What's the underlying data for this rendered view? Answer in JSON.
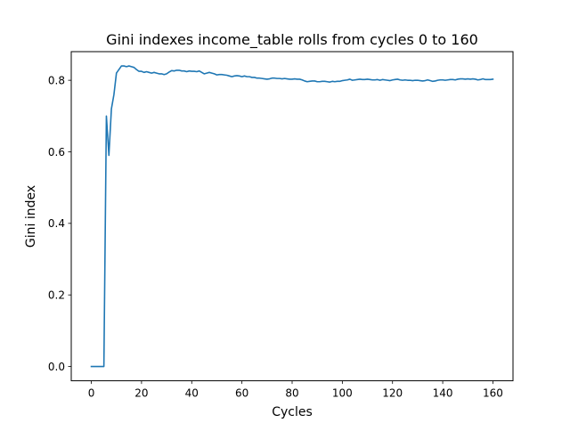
{
  "chart_data": {
    "type": "line",
    "title": "Gini indexes income_table rolls from cycles 0 to 160",
    "xlabel": "Cycles",
    "ylabel": "Gini index",
    "xlim": [
      -8,
      168
    ],
    "ylim": [
      -0.04,
      0.88
    ],
    "xticks": [
      0,
      20,
      40,
      60,
      80,
      100,
      120,
      140,
      160
    ],
    "xtick_labels": [
      "0",
      "20",
      "40",
      "60",
      "80",
      "100",
      "120",
      "140",
      "160"
    ],
    "yticks": [
      0.0,
      0.2,
      0.4,
      0.6,
      0.8
    ],
    "ytick_labels": [
      "0.0",
      "0.2",
      "0.4",
      "0.6",
      "0.8"
    ],
    "grid": false,
    "legend": null,
    "series": [
      {
        "color": "#1f77b4",
        "x": [
          0,
          1,
          2,
          3,
          4,
          5,
          6,
          7,
          8,
          9,
          10,
          11,
          12,
          13,
          14,
          15,
          16,
          17,
          18,
          19,
          20,
          21,
          22,
          23,
          24,
          25,
          26,
          27,
          28,
          29,
          30,
          31,
          32,
          33,
          34,
          35,
          36,
          37,
          38,
          39,
          40,
          41,
          42,
          43,
          44,
          45,
          46,
          47,
          48,
          49,
          50,
          51,
          52,
          53,
          54,
          55,
          56,
          57,
          58,
          59,
          60,
          61,
          62,
          63,
          64,
          65,
          66,
          67,
          68,
          69,
          70,
          71,
          72,
          73,
          74,
          75,
          76,
          77,
          78,
          79,
          80,
          81,
          82,
          83,
          84,
          85,
          86,
          87,
          88,
          89,
          90,
          91,
          92,
          93,
          94,
          95,
          96,
          97,
          98,
          99,
          100,
          101,
          102,
          103,
          104,
          105,
          106,
          107,
          108,
          109,
          110,
          111,
          112,
          113,
          114,
          115,
          116,
          117,
          118,
          119,
          120,
          121,
          122,
          123,
          124,
          125,
          126,
          127,
          128,
          129,
          130,
          131,
          132,
          133,
          134,
          135,
          136,
          137,
          138,
          139,
          140,
          141,
          142,
          143,
          144,
          145,
          146,
          147,
          148,
          149,
          150,
          151,
          152,
          153,
          154,
          155,
          156,
          157,
          158,
          159,
          160
        ],
        "y": [
          0.0,
          0.0,
          0.0,
          0.0,
          0.0,
          0.0,
          0.7,
          0.59,
          0.72,
          0.76,
          0.82,
          0.83,
          0.84,
          0.84,
          0.838,
          0.84,
          0.838,
          0.836,
          0.83,
          0.825,
          0.825,
          0.822,
          0.824,
          0.822,
          0.82,
          0.822,
          0.82,
          0.818,
          0.818,
          0.816,
          0.818,
          0.823,
          0.827,
          0.826,
          0.828,
          0.828,
          0.826,
          0.826,
          0.824,
          0.826,
          0.825,
          0.825,
          0.824,
          0.826,
          0.822,
          0.818,
          0.82,
          0.822,
          0.82,
          0.818,
          0.815,
          0.816,
          0.816,
          0.815,
          0.814,
          0.812,
          0.81,
          0.812,
          0.813,
          0.812,
          0.81,
          0.812,
          0.81,
          0.81,
          0.808,
          0.808,
          0.806,
          0.806,
          0.805,
          0.804,
          0.803,
          0.804,
          0.806,
          0.806,
          0.805,
          0.805,
          0.804,
          0.805,
          0.804,
          0.803,
          0.803,
          0.804,
          0.803,
          0.803,
          0.801,
          0.798,
          0.796,
          0.797,
          0.798,
          0.798,
          0.796,
          0.796,
          0.797,
          0.797,
          0.796,
          0.795,
          0.797,
          0.796,
          0.797,
          0.797,
          0.799,
          0.8,
          0.801,
          0.803,
          0.8,
          0.801,
          0.802,
          0.803,
          0.802,
          0.802,
          0.803,
          0.802,
          0.801,
          0.801,
          0.802,
          0.8,
          0.802,
          0.801,
          0.8,
          0.799,
          0.801,
          0.802,
          0.803,
          0.801,
          0.8,
          0.801,
          0.8,
          0.8,
          0.799,
          0.8,
          0.8,
          0.799,
          0.798,
          0.799,
          0.801,
          0.799,
          0.797,
          0.798,
          0.8,
          0.801,
          0.801,
          0.8,
          0.801,
          0.802,
          0.802,
          0.801,
          0.803,
          0.804,
          0.804,
          0.803,
          0.804,
          0.803,
          0.804,
          0.803,
          0.801,
          0.802,
          0.804,
          0.802,
          0.802,
          0.802,
          0.803
        ]
      }
    ]
  }
}
